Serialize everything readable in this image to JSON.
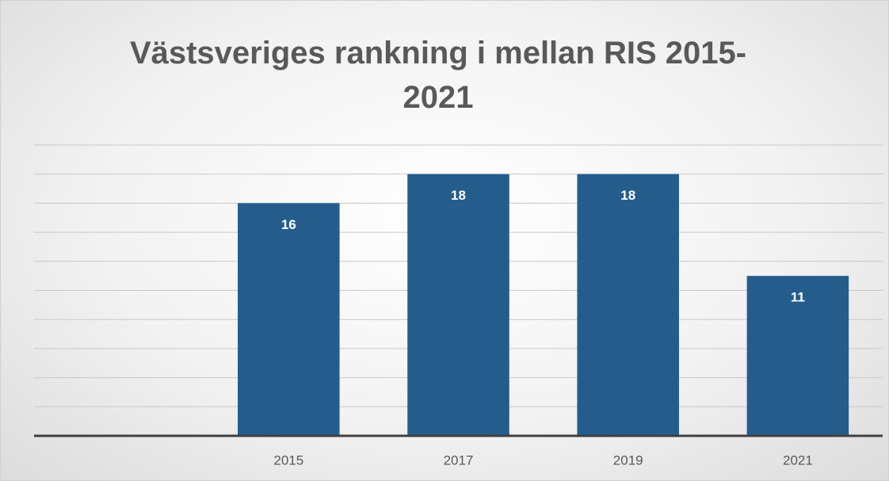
{
  "chart_data": {
    "type": "bar",
    "title": "Västsveriges rankning i mellan RIS 2015-2021",
    "categories": [
      null,
      "2015",
      "2017",
      "2019",
      "2021"
    ],
    "values": [
      null,
      16,
      18,
      18,
      11
    ],
    "color": "#245d8c",
    "ylim": [
      0,
      20
    ],
    "yticks": [
      0,
      2,
      4,
      6,
      8,
      10,
      12,
      14,
      16,
      18,
      20
    ],
    "grid": true
  }
}
